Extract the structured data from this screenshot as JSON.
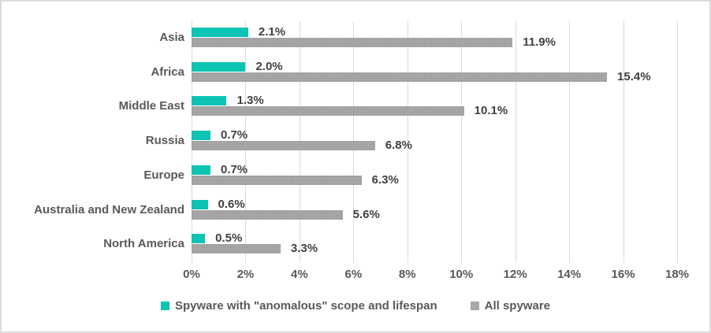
{
  "chart_data": {
    "type": "bar",
    "orientation": "horizontal",
    "title": "",
    "categories": [
      "Asia",
      "Africa",
      "Middle East",
      "Russia",
      "Europe",
      "Australia and New Zealand",
      "North America"
    ],
    "series": [
      {
        "name": "Spyware with \"anomalous\" scope and lifespan",
        "color": "#0dc3b3",
        "values": [
          2.1,
          2.0,
          1.3,
          0.7,
          0.7,
          0.6,
          0.5
        ],
        "labels": [
          "2.1%",
          "2.0%",
          "1.3%",
          "0.7%",
          "0.7%",
          "0.6%",
          "0.5%"
        ]
      },
      {
        "name": "All spyware",
        "color": "#a9a9a9",
        "values": [
          11.9,
          15.4,
          10.1,
          6.8,
          6.3,
          5.6,
          3.3
        ],
        "labels": [
          "11.9%",
          "15.4%",
          "10.1%",
          "6.8%",
          "6.3%",
          "5.6%",
          "3.3%"
        ]
      }
    ],
    "x_axis": {
      "min": 0,
      "max": 18,
      "step": 2,
      "ticks": [
        "0%",
        "2%",
        "4%",
        "6%",
        "8%",
        "10%",
        "12%",
        "14%",
        "16%",
        "18%"
      ]
    },
    "grid": true,
    "legend": {
      "position": "bottom",
      "entries": [
        "Spyware with \"anomalous\" scope and lifespan",
        "All spyware"
      ]
    }
  },
  "colors": {
    "teal": "#0dc3b3",
    "gray": "#a9a9a9",
    "grid": "#d9d9d9",
    "category_text": "#595959",
    "value_text": "#404040",
    "frame_border": "#dcdcdc"
  }
}
